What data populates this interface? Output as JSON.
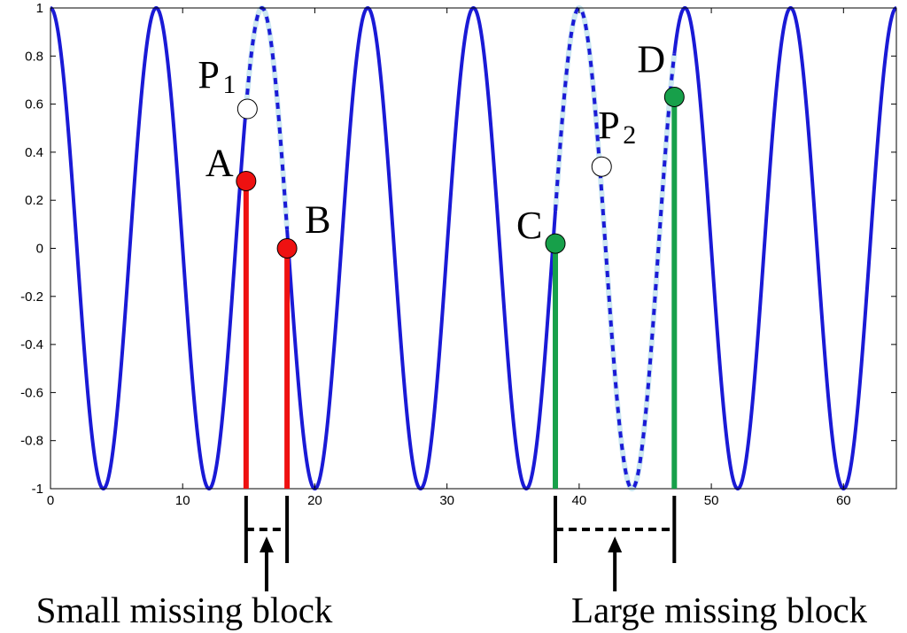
{
  "chart_data": {
    "type": "line",
    "title": "",
    "xlabel": "",
    "ylabel": "",
    "xlim": [
      0,
      64
    ],
    "ylim": [
      -1,
      1
    ],
    "grid": false,
    "x_ticks": [
      "0",
      "10",
      "20",
      "30",
      "40",
      "50",
      "60"
    ],
    "y_ticks": [
      "1",
      "0.8",
      "0.6",
      "0.4",
      "0.2",
      "0",
      "-0.2",
      "-0.4",
      "-0.6",
      "-0.8",
      "-1"
    ],
    "series": [
      {
        "function": "cos(2*pi*x/8)",
        "x_range": [
          0,
          64
        ],
        "color": "#1a1ad6"
      }
    ],
    "missing_blocks": [
      {
        "label": "Small missing block",
        "x_start": 14.8,
        "x_end": 17.9,
        "color": "#ee1111"
      },
      {
        "label": "Large missing block",
        "x_start": 38.2,
        "x_end": 47.2,
        "color": "#17a04a"
      }
    ],
    "points": [
      {
        "label": "A",
        "x": 14.8,
        "y": 0.28,
        "fill": "#ee1111"
      },
      {
        "label": "B",
        "x": 17.9,
        "y": 0.0,
        "fill": "#ee1111"
      },
      {
        "label": "C",
        "x": 38.2,
        "y": 0.02,
        "fill": "#17a04a"
      },
      {
        "label": "D",
        "x": 47.2,
        "y": 0.63,
        "fill": "#17a04a"
      },
      {
        "label": "P",
        "sub": "1",
        "x": 14.9,
        "y": 0.58,
        "fill": "#ffffff"
      },
      {
        "label": "P",
        "sub": "2",
        "x": 41.7,
        "y": 0.34,
        "fill": "#ffffff"
      }
    ],
    "colors": {
      "line": "#1a1ad6",
      "missing_fill": "#cde8f2",
      "axis": "#000000"
    }
  }
}
